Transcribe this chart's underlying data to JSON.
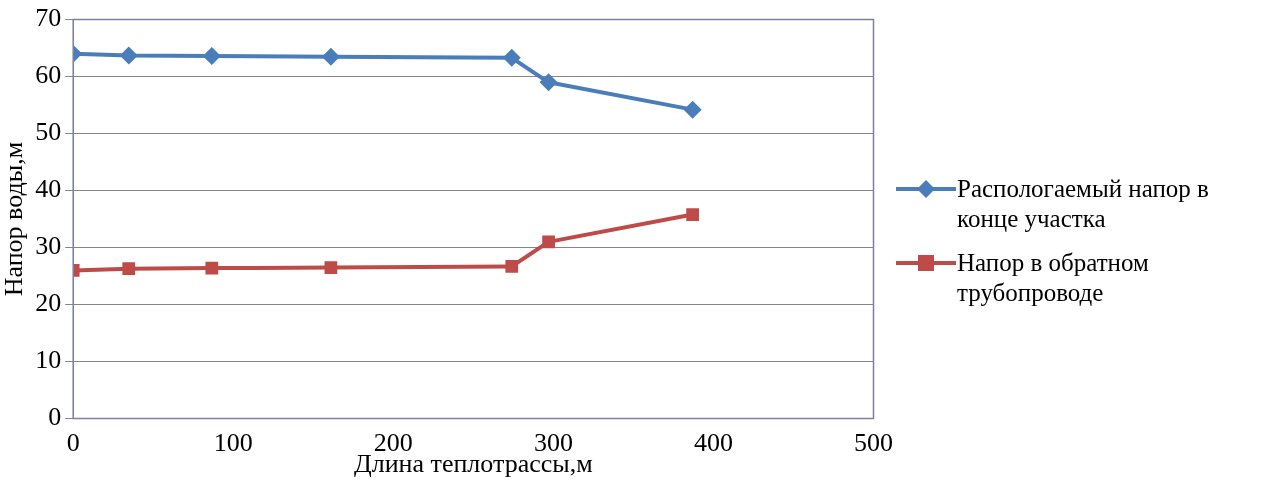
{
  "chart_data": {
    "type": "line",
    "xlabel": "Длина теплотрассы,м",
    "ylabel": "Напор воды,м",
    "x": [
      0,
      34.7,
      86.6,
      161,
      274,
      297,
      387
    ],
    "series": [
      {
        "name": "Распологаемый напор в конце участка",
        "color": "#4a7ebb",
        "marker": "diamond",
        "values": [
          64,
          63.7,
          63.6,
          63.5,
          63.3,
          59,
          54.2
        ]
      },
      {
        "name": "Напор в обратном трубопроводе",
        "color": "#be4b48",
        "marker": "square",
        "values": [
          26,
          26.3,
          26.4,
          26.5,
          26.7,
          31,
          35.8
        ]
      }
    ],
    "xlim": [
      0,
      500
    ],
    "xticks": [
      0,
      100,
      200,
      300,
      400,
      500
    ],
    "ylim": [
      0,
      70
    ],
    "yticks": [
      0,
      10,
      20,
      30,
      40,
      50,
      60,
      70
    ],
    "grid": "y",
    "legend": "right",
    "line_style": "solid"
  }
}
